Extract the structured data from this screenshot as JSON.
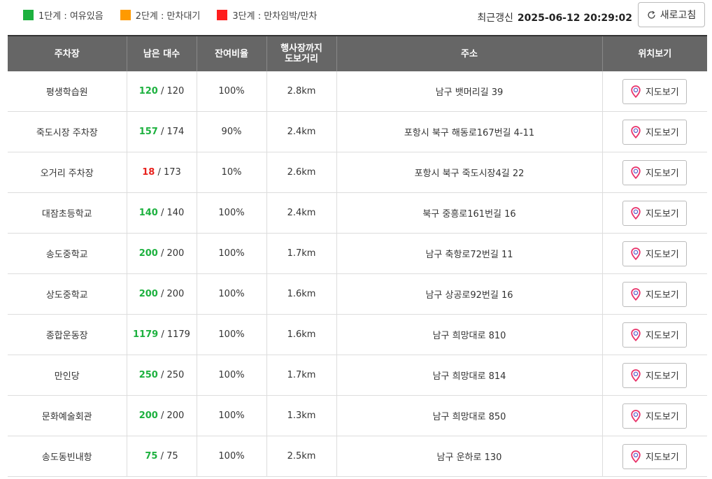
{
  "legend": [
    {
      "label": "1단계 : 여유있음",
      "color": "#1db13f"
    },
    {
      "label": "2단계 : 만차대기",
      "color": "#ff9a00"
    },
    {
      "label": "3단계 : 만차임박/만차",
      "color": "#ff1e1e"
    }
  ],
  "update": {
    "label": "최근갱신",
    "timestamp": "2025-06-12 20:29:02",
    "refresh_label": "새로고침"
  },
  "headers": {
    "name": "주차장",
    "remaining": "남은 대수",
    "ratio": "잔여비율",
    "distance_line1": "행사장까지",
    "distance_line2": "도보거리",
    "address": "주소",
    "map": "위치보기"
  },
  "colors": {
    "level1": "#1db13f",
    "level2": "#ff9a00",
    "level3": "#e8231e",
    "pin": "#e8336a"
  },
  "map_button_label": "지도보기",
  "rows": [
    {
      "name": "평생학습원",
      "available": "120",
      "total": "/ 120",
      "ratio": "100%",
      "distance": "2.8km",
      "address": "남구 뱃머리길 39",
      "level": "level1"
    },
    {
      "name": "죽도시장 주차장",
      "available": "157",
      "total": "/ 174",
      "ratio": "90%",
      "distance": "2.4km",
      "address": "포항시 북구 해동로167번길 4-11",
      "level": "level1"
    },
    {
      "name": "오거리 주차장",
      "available": "18",
      "total": "/ 173",
      "ratio": "10%",
      "distance": "2.6km",
      "address": "포항시 북구 죽도시장4길 22",
      "level": "level3"
    },
    {
      "name": "대잠초등학교",
      "available": "140",
      "total": "/ 140",
      "ratio": "100%",
      "distance": "2.4km",
      "address": "북구 중흥로161번길 16",
      "level": "level1"
    },
    {
      "name": "송도중학교",
      "available": "200",
      "total": "/ 200",
      "ratio": "100%",
      "distance": "1.7km",
      "address": "남구 축항로72번길 11",
      "level": "level1"
    },
    {
      "name": "상도중학교",
      "available": "200",
      "total": "/ 200",
      "ratio": "100%",
      "distance": "1.6km",
      "address": "남구 상공로92번길 16",
      "level": "level1"
    },
    {
      "name": "종합운동장",
      "available": "1179",
      "total": "/ 1179",
      "ratio": "100%",
      "distance": "1.6km",
      "address": "남구 희망대로 810",
      "level": "level1"
    },
    {
      "name": "만인당",
      "available": "250",
      "total": "/ 250",
      "ratio": "100%",
      "distance": "1.7km",
      "address": "남구 희망대로 814",
      "level": "level1"
    },
    {
      "name": "문화예술회관",
      "available": "200",
      "total": "/ 200",
      "ratio": "100%",
      "distance": "1.3km",
      "address": "남구 희망대로 850",
      "level": "level1"
    },
    {
      "name": "송도동빈내항",
      "available": "75",
      "total": "/ 75",
      "ratio": "100%",
      "distance": "2.5km",
      "address": "남구 운하로 130",
      "level": "level1"
    }
  ]
}
